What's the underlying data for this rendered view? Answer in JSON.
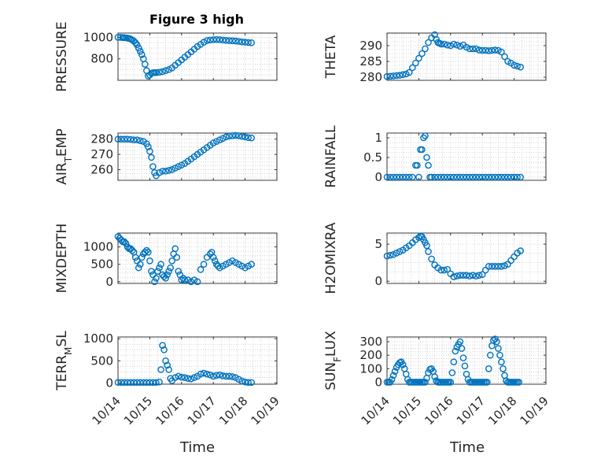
{
  "figure": {
    "title": "Figure 3 high",
    "xlabel_left": "Time",
    "xlabel_right": "Time",
    "marker_color": "#0072BD",
    "grid": "dotted minor grid"
  },
  "chart_data": [
    {
      "type": "scatter",
      "name": "PRESSURE",
      "ylabel": "PRESSURE",
      "ylabel_sub": "",
      "title": "Figure 3 high",
      "xlim": [
        0,
        5
      ],
      "ylim": [
        600,
        1040
      ],
      "yticks": [
        800,
        1000
      ],
      "xticklabels": [],
      "ytickstep": 100,
      "x": [
        0.0,
        0.08,
        0.15,
        0.2,
        0.25,
        0.3,
        0.35,
        0.4,
        0.45,
        0.5,
        0.55,
        0.6,
        0.65,
        0.7,
        0.75,
        0.8,
        0.85,
        0.9,
        0.95,
        1.0,
        1.05,
        1.1,
        1.15,
        1.2,
        1.3,
        1.4,
        1.5,
        1.6,
        1.7,
        1.8,
        1.9,
        2.0,
        2.1,
        2.2,
        2.3,
        2.4,
        2.5,
        2.6,
        2.7,
        2.8,
        2.9,
        3.0,
        3.1,
        3.2,
        3.3,
        3.4,
        3.5,
        3.6,
        3.7,
        3.8,
        3.9,
        4.0,
        4.1,
        4.2
      ],
      "y": [
        1000,
        1000,
        998,
        997,
        995,
        993,
        990,
        985,
        975,
        965,
        950,
        930,
        900,
        870,
        840,
        800,
        750,
        690,
        640,
        650,
        665,
        670,
        672,
        672,
        675,
        680,
        690,
        700,
        715,
        740,
        765,
        790,
        815,
        840,
        865,
        890,
        915,
        935,
        955,
        970,
        975,
        978,
        980,
        978,
        975,
        972,
        970,
        968,
        966,
        962,
        958,
        955,
        952,
        950
      ]
    },
    {
      "type": "scatter",
      "name": "THETA",
      "ylabel": "THETA",
      "ylabel_sub": "",
      "xlim": [
        0,
        5
      ],
      "ylim": [
        279,
        294
      ],
      "yticks": [
        280,
        285,
        290
      ],
      "xticklabels": [],
      "x": [
        0.0,
        0.1,
        0.2,
        0.3,
        0.4,
        0.5,
        0.6,
        0.7,
        0.8,
        0.9,
        1.0,
        1.1,
        1.2,
        1.3,
        1.4,
        1.5,
        1.55,
        1.6,
        1.65,
        1.7,
        1.8,
        1.9,
        2.0,
        2.1,
        2.2,
        2.3,
        2.4,
        2.5,
        2.6,
        2.7,
        2.8,
        2.9,
        3.0,
        3.1,
        3.2,
        3.3,
        3.4,
        3.5,
        3.6,
        3.7,
        3.8,
        3.9,
        4.0,
        4.1,
        4.2
      ],
      "y": [
        280.2,
        280.3,
        280.4,
        280.5,
        280.6,
        280.8,
        281,
        281.5,
        283,
        284.5,
        286,
        287.5,
        289,
        291,
        292.5,
        293.5,
        292,
        291,
        290.8,
        290.5,
        290.5,
        290.2,
        290,
        290.5,
        290.2,
        289.8,
        290.2,
        289.5,
        289,
        289,
        289,
        288.6,
        288.5,
        288.5,
        288.4,
        288.5,
        288.6,
        288.5,
        288,
        286.5,
        285,
        284.5,
        283.8,
        283.5,
        283.2
      ]
    },
    {
      "type": "scatter",
      "name": "AIR_TEMP",
      "ylabel": "AIR",
      "ylabel_sub": "T",
      "ylabel_tail": "EMP",
      "xlim": [
        0,
        5
      ],
      "ylim": [
        253,
        284
      ],
      "yticks": [
        260,
        270,
        280
      ],
      "xticklabels": [],
      "x": [
        0.0,
        0.1,
        0.2,
        0.3,
        0.4,
        0.5,
        0.6,
        0.7,
        0.8,
        0.9,
        0.95,
        1.0,
        1.05,
        1.1,
        1.15,
        1.2,
        1.3,
        1.4,
        1.5,
        1.6,
        1.7,
        1.8,
        1.9,
        2.0,
        2.1,
        2.2,
        2.3,
        2.4,
        2.5,
        2.6,
        2.7,
        2.8,
        2.9,
        3.0,
        3.1,
        3.2,
        3.3,
        3.4,
        3.5,
        3.6,
        3.7,
        3.8,
        3.9,
        4.0,
        4.1,
        4.2
      ],
      "y": [
        280,
        280,
        280,
        280,
        279.8,
        279.5,
        279.5,
        279,
        278.5,
        277,
        275,
        272,
        268,
        262,
        258,
        256,
        258,
        259,
        259,
        259.5,
        260,
        261,
        262,
        263,
        264,
        265.5,
        267,
        268.5,
        270,
        271.5,
        273,
        274.5,
        276,
        277.5,
        278.5,
        279.5,
        280.5,
        281.5,
        282,
        282.3,
        282.5,
        282.2,
        281.8,
        281.5,
        281,
        280.8
      ]
    },
    {
      "type": "scatter",
      "name": "RAINFALL",
      "ylabel": "RAINFALL",
      "ylabel_sub": "",
      "xlim": [
        0,
        5
      ],
      "ylim": [
        -0.08,
        1.12
      ],
      "yticks": [
        0,
        0.5,
        1
      ],
      "xticklabels": [],
      "x": [
        0.0,
        0.1,
        0.2,
        0.3,
        0.4,
        0.5,
        0.6,
        0.7,
        0.8,
        0.9,
        0.95,
        1.0,
        1.05,
        1.1,
        1.15,
        1.2,
        1.25,
        1.3,
        1.35,
        1.4,
        1.5,
        1.6,
        1.7,
        1.8,
        1.9,
        2.0,
        2.1,
        2.2,
        2.3,
        2.4,
        2.5,
        2.6,
        2.7,
        2.8,
        2.9,
        3.0,
        3.1,
        3.2,
        3.3,
        3.4,
        3.5,
        3.6,
        3.7,
        3.8,
        3.9,
        4.0,
        4.1,
        4.2
      ],
      "y": [
        0,
        0,
        0,
        0,
        0,
        0,
        0,
        0,
        0,
        0.3,
        0.3,
        0,
        0.7,
        0.7,
        1.0,
        1.05,
        0.5,
        0.3,
        0,
        0,
        0,
        0,
        0,
        0,
        0,
        0,
        0,
        0,
        0,
        0,
        0,
        0,
        0,
        0,
        0,
        0,
        0,
        0,
        0,
        0,
        0,
        0,
        0,
        0,
        0,
        0,
        0,
        0
      ]
    },
    {
      "type": "scatter",
      "name": "MIXDEPTH",
      "ylabel": "MIXDEPTH",
      "ylabel_sub": "",
      "xlim": [
        0,
        5
      ],
      "ylim": [
        -50,
        1400
      ],
      "yticks": [
        0,
        500,
        1000
      ],
      "xticklabels": [],
      "x": [
        0.0,
        0.05,
        0.1,
        0.15,
        0.2,
        0.25,
        0.3,
        0.35,
        0.4,
        0.45,
        0.5,
        0.55,
        0.6,
        0.65,
        0.7,
        0.75,
        0.8,
        0.85,
        0.9,
        0.95,
        1.0,
        1.05,
        1.1,
        1.15,
        1.2,
        1.25,
        1.3,
        1.35,
        1.4,
        1.45,
        1.5,
        1.55,
        1.6,
        1.65,
        1.7,
        1.75,
        1.8,
        1.85,
        1.9,
        1.95,
        2.0,
        2.05,
        2.1,
        2.2,
        2.3,
        2.4,
        2.5,
        2.6,
        2.7,
        2.8,
        2.9,
        2.95,
        3.0,
        3.05,
        3.1,
        3.15,
        3.2,
        3.3,
        3.4,
        3.5,
        3.6,
        3.7,
        3.8,
        3.9,
        4.0,
        4.1,
        4.2
      ],
      "y": [
        1300,
        1250,
        1200,
        1150,
        1150,
        1100,
        1000,
        950,
        950,
        900,
        850,
        700,
        600,
        400,
        500,
        700,
        800,
        850,
        900,
        850,
        600,
        300,
        200,
        0,
        100,
        300,
        400,
        500,
        200,
        150,
        100,
        200,
        300,
        400,
        600,
        800,
        950,
        700,
        300,
        200,
        50,
        100,
        50,
        50,
        0,
        50,
        0,
        350,
        500,
        700,
        800,
        850,
        700,
        600,
        500,
        450,
        400,
        450,
        500,
        550,
        600,
        550,
        500,
        450,
        400,
        450,
        500
      ]
    },
    {
      "type": "scatter",
      "name": "H2OMIXRA",
      "ylabel": "H2OMIXRA",
      "ylabel_sub": "",
      "xlim": [
        0,
        5
      ],
      "ylim": [
        -0.3,
        6.5
      ],
      "yticks": [
        0,
        5
      ],
      "xticklabels": [],
      "x": [
        0.0,
        0.1,
        0.2,
        0.3,
        0.4,
        0.5,
        0.6,
        0.7,
        0.8,
        0.9,
        1.0,
        1.05,
        1.1,
        1.15,
        1.2,
        1.25,
        1.3,
        1.4,
        1.5,
        1.6,
        1.7,
        1.8,
        1.9,
        2.0,
        2.1,
        2.2,
        2.3,
        2.4,
        2.5,
        2.6,
        2.7,
        2.8,
        2.9,
        3.0,
        3.1,
        3.2,
        3.3,
        3.4,
        3.5,
        3.6,
        3.7,
        3.8,
        3.9,
        4.0,
        4.1,
        4.2
      ],
      "y": [
        3.4,
        3.5,
        3.6,
        3.8,
        4.0,
        4.2,
        4.5,
        4.8,
        5.2,
        5.6,
        5.9,
        6.1,
        6.0,
        5.6,
        5.2,
        4.8,
        4.0,
        3.0,
        2.2,
        1.8,
        1.5,
        1.5,
        1.6,
        1.0,
        0.6,
        0.7,
        0.8,
        0.8,
        0.8,
        0.7,
        0.8,
        0.7,
        0.8,
        0.9,
        1.5,
        2.0,
        2.0,
        2.0,
        2.0,
        2.0,
        2.1,
        2.3,
        2.8,
        3.3,
        3.8,
        4.1
      ]
    },
    {
      "type": "scatter",
      "name": "TERR_MSL",
      "ylabel": "TERR",
      "ylabel_sub": "M",
      "ylabel_tail": "SL",
      "xlim": [
        0,
        5
      ],
      "ylim": [
        -30,
        1040
      ],
      "yticks": [
        0,
        500,
        1000
      ],
      "xticklabels": [
        "10/14",
        "10/15",
        "10/16",
        "10/17",
        "10/18",
        "10/19"
      ],
      "x": [
        0.0,
        0.1,
        0.2,
        0.3,
        0.4,
        0.5,
        0.6,
        0.7,
        0.8,
        0.9,
        1.0,
        1.1,
        1.2,
        1.3,
        1.35,
        1.4,
        1.45,
        1.5,
        1.55,
        1.6,
        1.65,
        1.7,
        1.8,
        1.9,
        2.0,
        2.1,
        2.2,
        2.3,
        2.4,
        2.5,
        2.6,
        2.7,
        2.8,
        2.9,
        3.0,
        3.1,
        3.2,
        3.3,
        3.4,
        3.5,
        3.6,
        3.7,
        3.8,
        3.9,
        4.0,
        4.1,
        4.2
      ],
      "y": [
        10,
        10,
        10,
        10,
        10,
        10,
        10,
        10,
        10,
        10,
        10,
        10,
        10,
        20,
        300,
        850,
        750,
        500,
        400,
        300,
        100,
        50,
        120,
        150,
        130,
        120,
        100,
        90,
        120,
        150,
        200,
        220,
        200,
        180,
        150,
        170,
        180,
        160,
        150,
        150,
        140,
        120,
        80,
        40,
        20,
        10,
        10
      ]
    },
    {
      "type": "scatter",
      "name": "SUN_FLUX",
      "ylabel": "SUN",
      "ylabel_sub": "F",
      "ylabel_tail": "LUX",
      "xlim": [
        0,
        5
      ],
      "ylim": [
        -15,
        335
      ],
      "yticks": [
        0,
        100,
        200,
        300
      ],
      "xticklabels": [
        "10/14",
        "10/15",
        "10/16",
        "10/17",
        "10/18",
        "10/19"
      ],
      "x": [
        0.0,
        0.05,
        0.1,
        0.15,
        0.2,
        0.25,
        0.3,
        0.35,
        0.4,
        0.45,
        0.5,
        0.55,
        0.6,
        0.65,
        0.7,
        0.75,
        0.8,
        0.85,
        0.9,
        0.95,
        1.0,
        1.05,
        1.1,
        1.15,
        1.2,
        1.25,
        1.3,
        1.35,
        1.4,
        1.45,
        1.5,
        1.55,
        1.6,
        1.65,
        1.7,
        1.75,
        1.8,
        1.85,
        1.9,
        1.95,
        2.0,
        2.05,
        2.1,
        2.15,
        2.2,
        2.25,
        2.3,
        2.35,
        2.4,
        2.45,
        2.5,
        2.55,
        2.6,
        2.65,
        2.7,
        2.75,
        2.8,
        2.85,
        2.9,
        2.95,
        3.0,
        3.05,
        3.1,
        3.15,
        3.2,
        3.25,
        3.3,
        3.35,
        3.4,
        3.45,
        3.5,
        3.55,
        3.6,
        3.65,
        3.7,
        3.75,
        3.8,
        3.85,
        3.9,
        3.95,
        4.0,
        4.05,
        4.1,
        4.15
      ],
      "y": [
        0,
        0,
        0,
        20,
        50,
        80,
        110,
        130,
        145,
        150,
        130,
        100,
        60,
        20,
        0,
        0,
        0,
        0,
        0,
        0,
        0,
        0,
        0,
        0,
        0,
        30,
        70,
        95,
        100,
        80,
        40,
        10,
        0,
        0,
        0,
        0,
        0,
        0,
        0,
        0,
        0,
        70,
        150,
        230,
        260,
        280,
        300,
        250,
        180,
        120,
        60,
        20,
        0,
        0,
        0,
        0,
        0,
        0,
        0,
        0,
        0,
        0,
        0,
        0,
        100,
        200,
        270,
        310,
        320,
        300,
        250,
        200,
        150,
        100,
        50,
        10,
        0,
        0,
        0,
        0,
        0,
        0,
        0,
        0
      ]
    }
  ]
}
